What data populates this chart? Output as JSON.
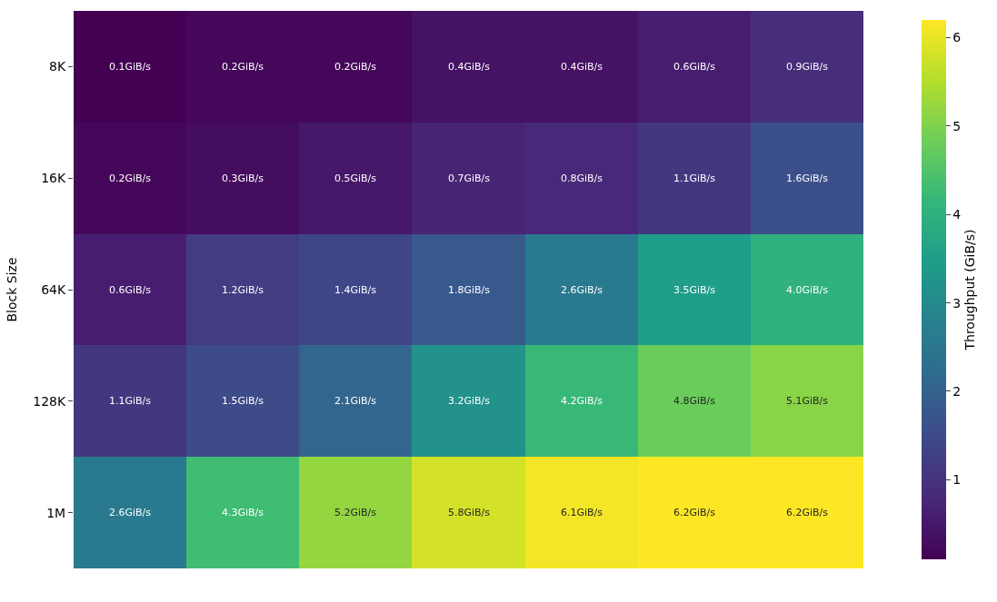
{
  "chart_data": {
    "type": "heatmap",
    "ylabel": "Block Size",
    "clabel": "Throughput (GiB/s)",
    "categories": [
      null,
      null,
      null,
      null,
      null,
      null,
      null
    ],
    "y_categories": [
      "8K",
      "16K",
      "64K",
      "128K",
      "1M"
    ],
    "cells": [
      [
        0.1,
        0.2,
        0.2,
        0.4,
        0.4,
        0.6,
        0.9
      ],
      [
        0.2,
        0.3,
        0.5,
        0.7,
        0.8,
        1.1,
        1.6
      ],
      [
        0.6,
        1.2,
        1.4,
        1.8,
        2.6,
        3.5,
        4.0
      ],
      [
        1.1,
        1.5,
        2.1,
        3.2,
        4.2,
        4.8,
        5.1
      ],
      [
        2.6,
        4.3,
        5.2,
        5.8,
        6.1,
        6.2,
        6.2
      ]
    ],
    "cell_labels": [
      [
        "0.1GiB/s",
        "0.2GiB/s",
        "0.2GiB/s",
        "0.4GiB/s",
        "0.4GiB/s",
        "0.6GiB/s",
        "0.9GiB/s"
      ],
      [
        "0.2GiB/s",
        "0.3GiB/s",
        "0.5GiB/s",
        "0.7GiB/s",
        "0.8GiB/s",
        "1.1GiB/s",
        "1.6GiB/s"
      ],
      [
        "0.6GiB/s",
        "1.2GiB/s",
        "1.4GiB/s",
        "1.8GiB/s",
        "2.6GiB/s",
        "3.5GiB/s",
        "4.0GiB/s"
      ],
      [
        "1.1GiB/s",
        "1.5GiB/s",
        "2.1GiB/s",
        "3.2GiB/s",
        "4.2GiB/s",
        "4.8GiB/s",
        "5.1GiB/s"
      ],
      [
        "2.6GiB/s",
        "4.3GiB/s",
        "5.2GiB/s",
        "5.8GiB/s",
        "6.1GiB/s",
        "6.2GiB/s",
        "6.2GiB/s"
      ]
    ],
    "clim": [
      0.1,
      6.2
    ],
    "cticks": [
      1,
      2,
      3,
      4,
      5,
      6
    ],
    "tick_labels": "y"
  }
}
